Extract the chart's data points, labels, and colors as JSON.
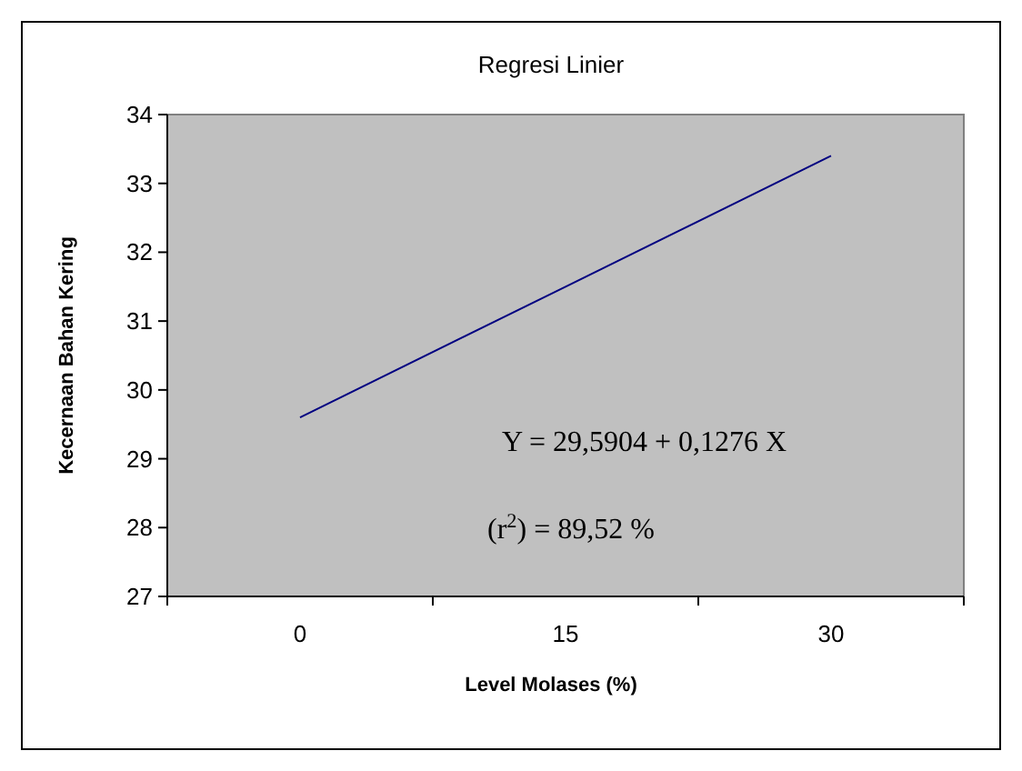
{
  "chart_data": {
    "type": "line",
    "title": "Regresi Linier",
    "xlabel": "Level Molases (%)",
    "ylabel": "Kecernaan Bahan Kering",
    "categories": [
      "0",
      "15",
      "30"
    ],
    "series": [
      {
        "color": "#000080",
        "values": [
          29.6,
          31.5,
          33.4
        ]
      }
    ],
    "ylim": [
      27,
      34
    ],
    "yticks": [
      27,
      28,
      29,
      30,
      31,
      32,
      33,
      34
    ],
    "marker": "none",
    "line_style": "solid",
    "annotations": [
      "Y = 29,5904 + 0,1276 X",
      "(r$^{2}$) = 89,52 %"
    ]
  }
}
